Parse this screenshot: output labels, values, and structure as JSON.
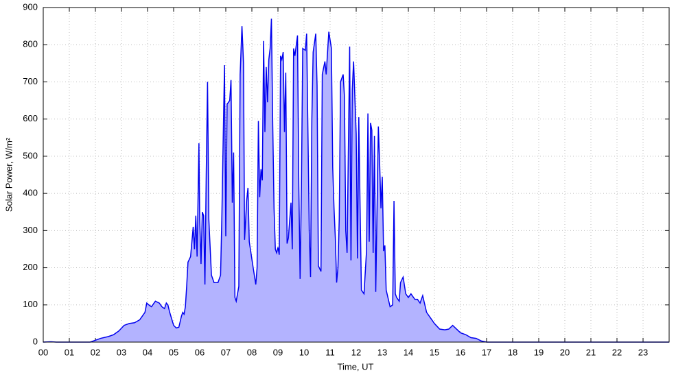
{
  "chart_data": {
    "type": "area",
    "xlabel": "Time, UT",
    "ylabel": "Solar Power, W/m²",
    "xlim": [
      0,
      24
    ],
    "ylim": [
      0,
      900
    ],
    "xticks": [
      {
        "value": 0,
        "label": "00"
      },
      {
        "value": 1,
        "label": "01"
      },
      {
        "value": 2,
        "label": "02"
      },
      {
        "value": 3,
        "label": "03"
      },
      {
        "value": 4,
        "label": "04"
      },
      {
        "value": 5,
        "label": "05"
      },
      {
        "value": 6,
        "label": "06"
      },
      {
        "value": 7,
        "label": "07"
      },
      {
        "value": 8,
        "label": "08"
      },
      {
        "value": 9,
        "label": "09"
      },
      10,
      11,
      12,
      13,
      14,
      15,
      16,
      17,
      18,
      19,
      20,
      21,
      22,
      23
    ],
    "yticks": [
      0,
      100,
      200,
      300,
      400,
      500,
      600,
      700,
      800,
      900
    ],
    "grid": true,
    "color": "#0000ee",
    "fill": "#b3b3ff",
    "x": [
      0,
      0.3,
      0.5,
      1,
      1.5,
      1.8,
      2.0,
      2.2,
      2.5,
      2.7,
      2.9,
      3.1,
      3.3,
      3.5,
      3.7,
      3.8,
      3.9,
      3.97,
      4.05,
      4.15,
      4.3,
      4.45,
      4.55,
      4.65,
      4.72,
      4.78,
      4.85,
      5.0,
      5.1,
      5.2,
      5.3,
      5.35,
      5.4,
      5.45,
      5.5,
      5.55,
      5.65,
      5.75,
      5.8,
      5.85,
      5.9,
      5.97,
      6.0,
      6.05,
      6.1,
      6.15,
      6.2,
      6.25,
      6.3,
      6.35,
      6.45,
      6.55,
      6.7,
      6.8,
      6.85,
      6.95,
      7.0,
      7.05,
      7.15,
      7.2,
      7.25,
      7.3,
      7.35,
      7.4,
      7.5,
      7.55,
      7.62,
      7.68,
      7.72,
      7.8,
      7.85,
      7.9,
      8.05,
      8.15,
      8.2,
      8.25,
      8.3,
      8.35,
      8.4,
      8.45,
      8.5,
      8.55,
      8.6,
      8.65,
      8.7,
      8.75,
      8.8,
      8.85,
      8.9,
      8.95,
      9.0,
      9.05,
      9.1,
      9.15,
      9.2,
      9.25,
      9.3,
      9.35,
      9.4,
      9.5,
      9.55,
      9.6,
      9.65,
      9.75,
      9.8,
      9.85,
      9.9,
      9.95,
      10.05,
      10.1,
      10.2,
      10.25,
      10.3,
      10.35,
      10.45,
      10.5,
      10.55,
      10.65,
      10.7,
      10.8,
      10.85,
      10.95,
      11.05,
      11.1,
      11.15,
      11.2,
      11.25,
      11.3,
      11.35,
      11.4,
      11.5,
      11.55,
      11.6,
      11.65,
      11.75,
      11.8,
      11.85,
      11.9,
      12.0,
      12.05,
      12.1,
      12.15,
      12.2,
      12.3,
      12.4,
      12.45,
      12.5,
      12.55,
      12.6,
      12.65,
      12.7,
      12.75,
      12.85,
      12.9,
      12.95,
      13.0,
      13.05,
      13.1,
      13.15,
      13.3,
      13.4,
      13.45,
      13.5,
      13.55,
      13.65,
      13.7,
      13.8,
      13.9,
      14.0,
      14.1,
      14.25,
      14.35,
      14.45,
      14.55,
      14.6,
      14.7,
      14.8,
      15.0,
      15.2,
      15.4,
      15.55,
      15.7,
      15.85,
      16.0,
      16.2,
      16.4,
      16.6,
      16.8,
      17.0,
      17.5,
      18,
      20,
      22,
      24
    ],
    "values": [
      0,
      1,
      0,
      0,
      0,
      0,
      5,
      10,
      15,
      20,
      30,
      45,
      50,
      52,
      60,
      70,
      80,
      105,
      100,
      95,
      110,
      105,
      95,
      90,
      105,
      100,
      80,
      45,
      38,
      40,
      70,
      80,
      75,
      95,
      150,
      215,
      230,
      310,
      250,
      340,
      230,
      535,
      330,
      210,
      350,
      340,
      155,
      450,
      700,
      330,
      180,
      160,
      160,
      180,
      340,
      745,
      285,
      640,
      650,
      705,
      375,
      510,
      120,
      110,
      150,
      720,
      850,
      750,
      275,
      380,
      415,
      270,
      200,
      155,
      200,
      595,
      390,
      465,
      435,
      810,
      565,
      740,
      645,
      760,
      790,
      870,
      585,
      360,
      250,
      240,
      255,
      235,
      770,
      760,
      780,
      565,
      725,
      265,
      280,
      375,
      250,
      790,
      770,
      825,
      420,
      170,
      420,
      790,
      785,
      830,
      300,
      175,
      600,
      780,
      830,
      690,
      205,
      190,
      720,
      755,
      720,
      835,
      790,
      470,
      360,
      280,
      160,
      200,
      330,
      700,
      720,
      660,
      300,
      240,
      795,
      220,
      680,
      755,
      560,
      225,
      605,
      360,
      140,
      130,
      250,
      615,
      270,
      590,
      570,
      240,
      555,
      135,
      580,
      480,
      360,
      445,
      245,
      260,
      140,
      95,
      100,
      380,
      130,
      120,
      110,
      160,
      175,
      130,
      120,
      130,
      115,
      115,
      105,
      125,
      110,
      80,
      70,
      50,
      35,
      33,
      35,
      45,
      35,
      25,
      20,
      12,
      10,
      3,
      0,
      0,
      0,
      0,
      0,
      0
    ]
  }
}
